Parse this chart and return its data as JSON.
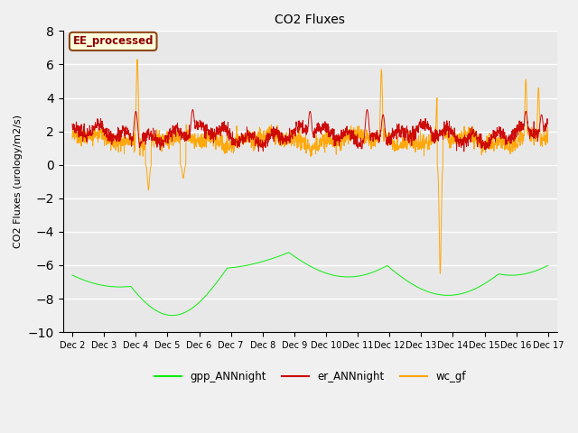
{
  "title": "CO2 Fluxes",
  "ylabel": "CO2 Fluxes (urology/m2/s)",
  "ylim": [
    -10,
    8
  ],
  "yticks": [
    -10,
    -8,
    -6,
    -4,
    -2,
    0,
    2,
    4,
    6,
    8
  ],
  "background_color": "#f0f0f0",
  "plot_bg_color": "#e8e8e8",
  "grid_color": "#ffffff",
  "annotation_text": "EE_processed",
  "annotation_bg": "#ffffdd",
  "annotation_border": "#8b4513",
  "annotation_text_color": "#8b0000",
  "legend_entries": [
    "gpp_ANNnight",
    "er_ANNnight",
    "wc_gf"
  ],
  "line_colors": [
    "#00ee00",
    "#cc0000",
    "#ffa500"
  ],
  "n_points": 2000,
  "xtick_labels": [
    "Dec 2",
    "Dec 3",
    "Dec 4",
    "Dec 5",
    "Dec 6",
    "Dec 7",
    "Dec 8",
    "Dec 9",
    "Dec 10",
    "Dec 11",
    "Dec 12",
    "Dec 13",
    "Dec 14",
    "Dec 15",
    "Dec 16",
    "Dec 17"
  ],
  "xtick_positions": [
    0,
    1,
    2,
    3,
    4,
    5,
    6,
    7,
    8,
    9,
    10,
    11,
    12,
    13,
    14,
    15
  ]
}
